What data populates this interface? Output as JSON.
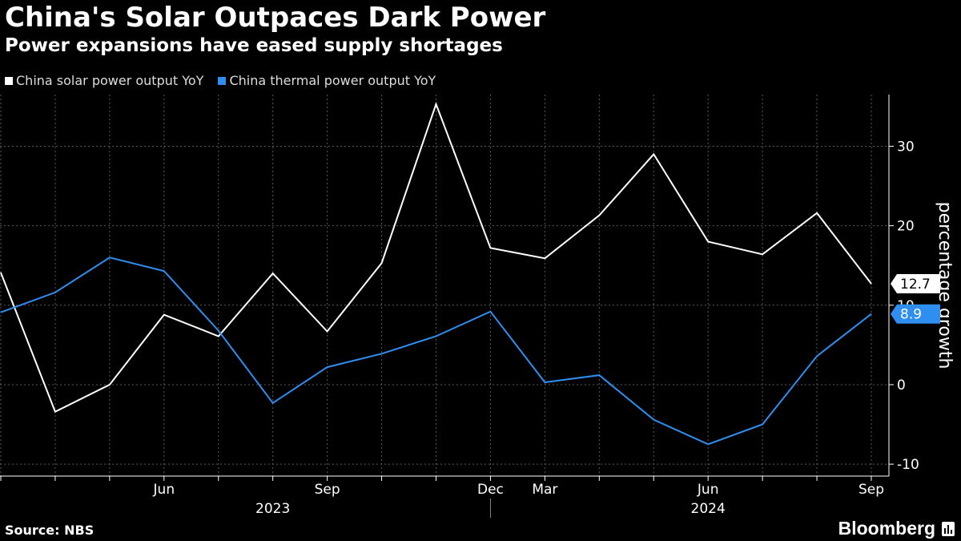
{
  "chart_data": {
    "type": "line",
    "title": "China's Solar Outpaces Dark Power",
    "subtitle": "Power expansions have eased supply shortages",
    "ylabel": "percentage growth",
    "xlabel": "",
    "ylim": [
      -11.5,
      36.5
    ],
    "yticks": [
      -10,
      0,
      10,
      20,
      30
    ],
    "x": [
      "2023-03",
      "2023-04",
      "2023-05",
      "2023-06",
      "2023-07",
      "2023-08",
      "2023-09",
      "2023-10",
      "2023-11",
      "2023-12",
      "2024-03",
      "2024-04",
      "2024-05",
      "2024-06",
      "2024-07",
      "2024-08",
      "2024-09"
    ],
    "xtick_labels": [
      "Jun",
      "Sep",
      "Dec",
      "Mar",
      "Jun",
      "Sep"
    ],
    "xtick_months": [
      "2023-06",
      "2023-09",
      "2023-12",
      "2024-03",
      "2024-06",
      "2024-09"
    ],
    "year_labels": [
      {
        "label": "2023",
        "month": "2023-08"
      },
      {
        "label": "2024",
        "month": "2024-06"
      }
    ],
    "series": [
      {
        "name": "China solar power output YoY",
        "color": "#ffffff",
        "values": [
          14.1,
          -3.4,
          0.0,
          8.8,
          6.1,
          14.0,
          6.7,
          15.3,
          35.3,
          17.2,
          15.9,
          21.3,
          29.0,
          18.0,
          16.4,
          21.6,
          12.7
        ]
      },
      {
        "name": "China thermal power output YoY",
        "color": "#2e8ff0",
        "values": [
          9.1,
          11.6,
          16.0,
          14.3,
          6.8,
          -2.3,
          2.2,
          3.9,
          6.1,
          9.2,
          0.3,
          1.2,
          -4.4,
          -7.5,
          -5.0,
          3.6,
          8.9
        ]
      }
    ],
    "end_labels": [
      {
        "series": 0,
        "text": "12.7"
      },
      {
        "series": 1,
        "text": "8.9"
      }
    ],
    "grid": true,
    "legend_position": "top-left"
  },
  "footer": {
    "source": "Source: NBS",
    "brand": "Bloomberg"
  }
}
